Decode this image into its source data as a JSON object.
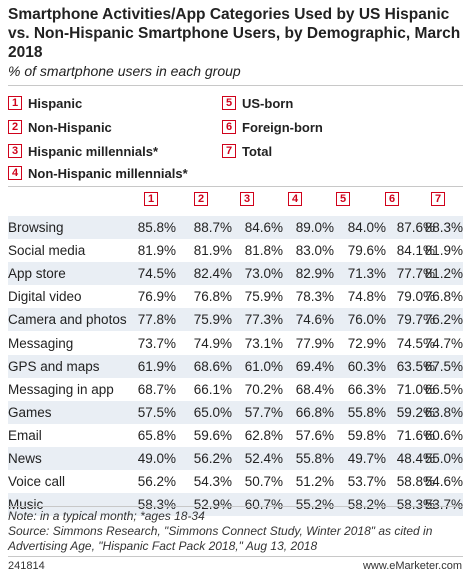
{
  "title": "Smartphone Activities/App Categories Used by US Hispanic vs. Non-Hispanic Smartphone Users, by Demographic, March 2018",
  "subtitle": "% of smartphone users in each group",
  "chart_data": {
    "type": "table",
    "columns": [
      {
        "key": "1",
        "name": "Hispanic"
      },
      {
        "key": "2",
        "name": "Non-Hispanic"
      },
      {
        "key": "3",
        "name": "Hispanic millennials*"
      },
      {
        "key": "4",
        "name": "Non-Hispanic millennials*"
      },
      {
        "key": "5",
        "name": "US-born"
      },
      {
        "key": "6",
        "name": "Foreign-born"
      },
      {
        "key": "7",
        "name": "Total"
      }
    ],
    "rows": [
      {
        "category": "Browsing",
        "values": [
          "85.8%",
          "88.7%",
          "84.6%",
          "89.0%",
          "84.0%",
          "87.6%",
          "88.3%"
        ]
      },
      {
        "category": "Social media",
        "values": [
          "81.9%",
          "81.9%",
          "81.8%",
          "83.0%",
          "79.6%",
          "84.1%",
          "81.9%"
        ]
      },
      {
        "category": "App store",
        "values": [
          "74.5%",
          "82.4%",
          "73.0%",
          "82.9%",
          "71.3%",
          "77.7%",
          "81.2%"
        ]
      },
      {
        "category": "Digital video",
        "values": [
          "76.9%",
          "76.8%",
          "75.9%",
          "78.3%",
          "74.8%",
          "79.0%",
          "76.8%"
        ]
      },
      {
        "category": "Camera and photos",
        "values": [
          "77.8%",
          "75.9%",
          "77.3%",
          "74.6%",
          "76.0%",
          "79.7%",
          "76.2%"
        ]
      },
      {
        "category": "Messaging",
        "values": [
          "73.7%",
          "74.9%",
          "73.1%",
          "77.9%",
          "72.9%",
          "74.5%",
          "74.7%"
        ]
      },
      {
        "category": "GPS and maps",
        "values": [
          "61.9%",
          "68.6%",
          "61.0%",
          "69.4%",
          "60.3%",
          "63.5%",
          "67.5%"
        ]
      },
      {
        "category": "Messaging in app",
        "values": [
          "68.7%",
          "66.1%",
          "70.2%",
          "68.4%",
          "66.3%",
          "71.0%",
          "66.5%"
        ]
      },
      {
        "category": "Games",
        "values": [
          "57.5%",
          "65.0%",
          "57.7%",
          "66.8%",
          "55.8%",
          "59.2%",
          "63.8%"
        ]
      },
      {
        "category": "Email",
        "values": [
          "65.8%",
          "59.6%",
          "62.8%",
          "57.6%",
          "59.8%",
          "71.6%",
          "60.6%"
        ]
      },
      {
        "category": "News",
        "values": [
          "49.0%",
          "56.2%",
          "52.4%",
          "55.8%",
          "49.7%",
          "48.4%",
          "55.0%"
        ]
      },
      {
        "category": "Voice call",
        "values": [
          "56.2%",
          "54.3%",
          "50.7%",
          "51.2%",
          "53.7%",
          "58.8%",
          "54.6%"
        ]
      },
      {
        "category": "Music",
        "values": [
          "58.3%",
          "52.9%",
          "60.7%",
          "55.2%",
          "58.2%",
          "58.3%",
          "53.7%"
        ]
      }
    ]
  },
  "note": "Note: in a typical month; *ages 18-34",
  "source": "Source: Simmons Research, \"Simmons Connect Study, Winter 2018\" as cited in Advertising Age, \"Hispanic Fact Pack 2018,\" Aug 13, 2018",
  "footer": {
    "id": "241814",
    "brand": "www.eMarketer.com"
  },
  "colors": {
    "accent": "#d0021b",
    "row_shade": "#e9eef4"
  }
}
